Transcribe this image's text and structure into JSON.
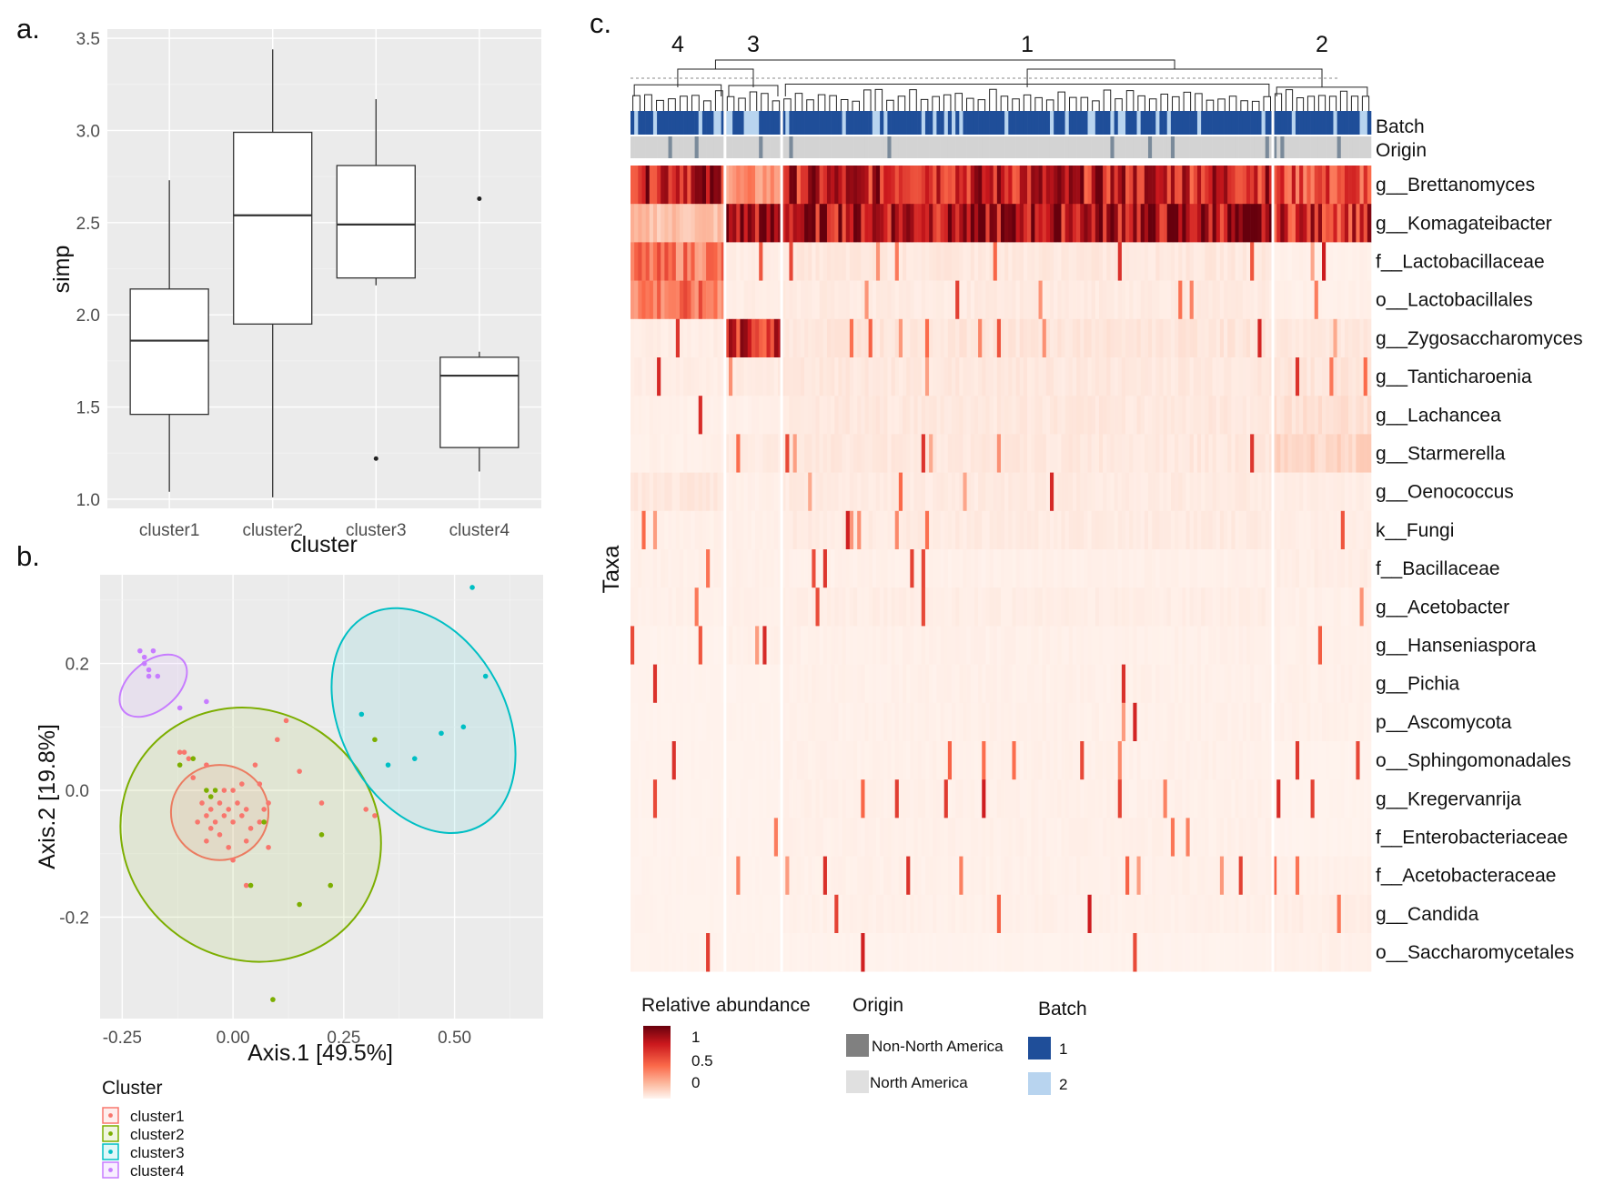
{
  "chart_data": [
    {
      "id": "a",
      "panel_label": "a.",
      "type": "box",
      "xlabel": "cluster",
      "ylabel": "simp",
      "ylim": [
        0.95,
        3.55
      ],
      "yticks": [
        "1.0",
        "1.5",
        "2.0",
        "2.5",
        "3.0",
        "3.5"
      ],
      "categories": [
        "cluster1",
        "cluster2",
        "cluster3",
        "cluster4"
      ],
      "boxes": [
        {
          "min": 1.04,
          "q1": 1.46,
          "median": 1.86,
          "q3": 2.14,
          "max": 2.73,
          "outliers": []
        },
        {
          "min": 1.01,
          "q1": 1.95,
          "median": 2.54,
          "q3": 2.99,
          "max": 3.44,
          "outliers": []
        },
        {
          "min": 2.16,
          "q1": 2.2,
          "median": 2.49,
          "q3": 2.81,
          "max": 3.17,
          "outliers": [
            1.22
          ]
        },
        {
          "min": 1.15,
          "q1": 1.28,
          "median": 1.67,
          "q3": 1.77,
          "max": 1.8,
          "outliers": [
            2.63
          ]
        }
      ]
    },
    {
      "id": "b",
      "panel_label": "b.",
      "type": "scatter",
      "xlabel": "Axis.1   [49.5%]",
      "ylabel": "Axis.2   [19.8%]",
      "xlim": [
        -0.3,
        0.7
      ],
      "ylim": [
        -0.36,
        0.34
      ],
      "xticks": [
        "-0.25",
        "0.00",
        "0.25",
        "0.50"
      ],
      "yticks": [
        "-0.2",
        "0.0",
        "0.2"
      ],
      "legend_title": "Cluster",
      "legend": [
        "cluster1",
        "cluster2",
        "cluster3",
        "cluster4"
      ],
      "colors": [
        "#f8766d",
        "#7cae00",
        "#00bfc4",
        "#c77cff"
      ],
      "ellipses": [
        {
          "cx": -0.03,
          "cy": -0.035,
          "rx": 0.11,
          "ry": 0.075,
          "angle": 0
        },
        {
          "cx": 0.04,
          "cy": -0.07,
          "rx": 0.28,
          "ry": 0.21,
          "angle": -55
        },
        {
          "cx": 0.43,
          "cy": 0.11,
          "rx": 0.27,
          "ry": 0.13,
          "angle": 62
        },
        {
          "cx": -0.18,
          "cy": 0.165,
          "rx": 0.088,
          "ry": 0.038,
          "angle": -40
        }
      ],
      "series": [
        {
          "name": "cluster1",
          "points": [
            [
              -0.06,
              -0.04
            ],
            [
              -0.05,
              -0.03
            ],
            [
              -0.04,
              -0.05
            ],
            [
              -0.03,
              -0.02
            ],
            [
              -0.02,
              -0.04
            ],
            [
              -0.01,
              -0.03
            ],
            [
              0.0,
              -0.05
            ],
            [
              -0.05,
              -0.06
            ],
            [
              -0.03,
              -0.07
            ],
            [
              0.01,
              -0.02
            ],
            [
              0.02,
              -0.04
            ],
            [
              0.03,
              -0.03
            ],
            [
              -0.07,
              -0.02
            ],
            [
              -0.08,
              -0.05
            ],
            [
              -0.02,
              0.0
            ],
            [
              0.0,
              0.0
            ],
            [
              0.04,
              -0.06
            ],
            [
              0.06,
              -0.05
            ],
            [
              -0.01,
              -0.09
            ],
            [
              0.03,
              -0.08
            ],
            [
              -0.06,
              -0.08
            ],
            [
              0.07,
              -0.03
            ],
            [
              0.08,
              -0.09
            ],
            [
              0.05,
              0.04
            ],
            [
              -0.11,
              0.06
            ],
            [
              -0.1,
              0.05
            ],
            [
              -0.12,
              0.06
            ],
            [
              0.12,
              0.11
            ],
            [
              0.15,
              0.03
            ],
            [
              0.2,
              -0.02
            ],
            [
              0.3,
              -0.03
            ],
            [
              0.32,
              -0.04
            ],
            [
              0.06,
              0.01
            ],
            [
              0.08,
              -0.02
            ],
            [
              -0.06,
              0.04
            ],
            [
              0.03,
              -0.15
            ],
            [
              0.0,
              -0.11
            ],
            [
              0.1,
              0.08
            ],
            [
              -0.09,
              0.02
            ],
            [
              0.02,
              0.01
            ]
          ]
        },
        {
          "name": "cluster2",
          "points": [
            [
              -0.09,
              0.05
            ],
            [
              -0.06,
              0.0
            ],
            [
              -0.04,
              0.0
            ],
            [
              -0.05,
              -0.01
            ],
            [
              0.07,
              -0.05
            ],
            [
              0.2,
              -0.07
            ],
            [
              0.22,
              -0.15
            ],
            [
              0.04,
              -0.15
            ],
            [
              0.15,
              -0.18
            ],
            [
              0.09,
              -0.33
            ],
            [
              0.32,
              0.08
            ],
            [
              -0.12,
              0.04
            ]
          ]
        },
        {
          "name": "cluster3",
          "points": [
            [
              0.54,
              0.32
            ],
            [
              0.57,
              0.18
            ],
            [
              0.52,
              0.1
            ],
            [
              0.47,
              0.09
            ],
            [
              0.41,
              0.05
            ],
            [
              0.35,
              0.04
            ],
            [
              0.29,
              0.12
            ]
          ]
        },
        {
          "name": "cluster4",
          "points": [
            [
              -0.21,
              0.22
            ],
            [
              -0.2,
              0.21
            ],
            [
              -0.2,
              0.2
            ],
            [
              -0.19,
              0.19
            ],
            [
              -0.18,
              0.22
            ],
            [
              -0.17,
              0.18
            ],
            [
              -0.19,
              0.18
            ],
            [
              -0.06,
              0.14
            ],
            [
              -0.12,
              0.13
            ]
          ]
        }
      ]
    },
    {
      "id": "c",
      "panel_label": "c.",
      "type": "heatmap",
      "ylabel": "Taxa",
      "cluster_labels": [
        "4",
        "3",
        "1",
        "2"
      ],
      "cluster_fraction": [
        0.128,
        0.074,
        0.664,
        0.134
      ],
      "annotation_rows": [
        "Batch",
        "Origin"
      ],
      "rows": [
        "g__Brettanomyces",
        "g__Komagateibacter",
        "f__Lactobacillaceae",
        "o__Lactobacillales",
        "g__Zygosaccharomyces",
        "g__Tanticharoenia",
        "g__Lachancea",
        "g__Starmerella",
        "g__Oenococcus",
        "k__Fungi",
        "f__Bacillaceae",
        "g__Acetobacter",
        "g__Hanseniaspora",
        "g__Pichia",
        "p__Ascomycota",
        "o__Sphingomonadales",
        "g__Kregervanrija",
        "f__Enterobacteriaceae",
        "f__Acetobacteraceae",
        "g__Candida",
        "o__Saccharomycetales"
      ],
      "row_strength": [
        [
          0.88,
          0.35,
          0.8,
          0.6
        ],
        [
          0.2,
          0.9,
          0.9,
          0.75
        ],
        [
          0.45,
          0.03,
          0.05,
          0.02
        ],
        [
          0.45,
          0.03,
          0.04,
          0.02
        ],
        [
          0.03,
          0.75,
          0.06,
          0.05
        ],
        [
          0.03,
          0.04,
          0.05,
          0.06
        ],
        [
          0.02,
          0.02,
          0.05,
          0.08
        ],
        [
          0.02,
          0.04,
          0.05,
          0.12
        ],
        [
          0.05,
          0.02,
          0.04,
          0.03
        ],
        [
          0.02,
          0.02,
          0.04,
          0.03
        ],
        [
          0.02,
          0.02,
          0.02,
          0.03
        ],
        [
          0.02,
          0.02,
          0.03,
          0.02
        ],
        [
          0.01,
          0.02,
          0.02,
          0.02
        ],
        [
          0.01,
          0.01,
          0.02,
          0.02
        ],
        [
          0.01,
          0.01,
          0.02,
          0.02
        ],
        [
          0.01,
          0.01,
          0.02,
          0.01
        ],
        [
          0.01,
          0.01,
          0.02,
          0.01
        ],
        [
          0.01,
          0.01,
          0.02,
          0.01
        ],
        [
          0.01,
          0.01,
          0.02,
          0.02
        ],
        [
          0.01,
          0.01,
          0.02,
          0.03
        ],
        [
          0.01,
          0.01,
          0.01,
          0.02
        ]
      ],
      "legend": {
        "abundance_title": "Relative abundance",
        "abundance_ticks": [
          "1",
          "0.5",
          "0"
        ],
        "origin_title": "Origin",
        "origin_items": [
          "Non-North America",
          "North America"
        ],
        "origin_colors": [
          "#808080",
          "#e0e0e0"
        ],
        "batch_title": "Batch",
        "batch_items": [
          "1",
          "2"
        ],
        "batch_colors": [
          "#1f4e99",
          "#b8d4ef"
        ]
      }
    }
  ]
}
